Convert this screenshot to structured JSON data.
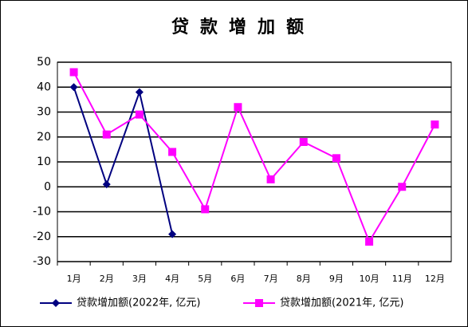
{
  "chart_data": {
    "type": "line",
    "title": "贷款增加额",
    "categories": [
      "1月",
      "2月",
      "3月",
      "4月",
      "5月",
      "6月",
      "7月",
      "8月",
      "9月",
      "10月",
      "11月",
      "12月"
    ],
    "series": [
      {
        "name": "贷款增加额(2022年, 亿元)",
        "color": "#000080",
        "marker": "diamond",
        "values": [
          40,
          1,
          38,
          -19,
          null,
          null,
          null,
          null,
          null,
          null,
          null,
          null
        ]
      },
      {
        "name": "贷款增加额(2021年, 亿元)",
        "color": "#ff00ff",
        "marker": "square",
        "values": [
          46,
          21,
          29,
          14,
          -9,
          32,
          3,
          18,
          11.5,
          -22,
          0,
          25
        ]
      }
    ],
    "ylim": [
      -30,
      50
    ],
    "yticks": [
      -30,
      -20,
      -10,
      0,
      10,
      20,
      30,
      40,
      50
    ],
    "grid": true,
    "legend": "bottom"
  }
}
